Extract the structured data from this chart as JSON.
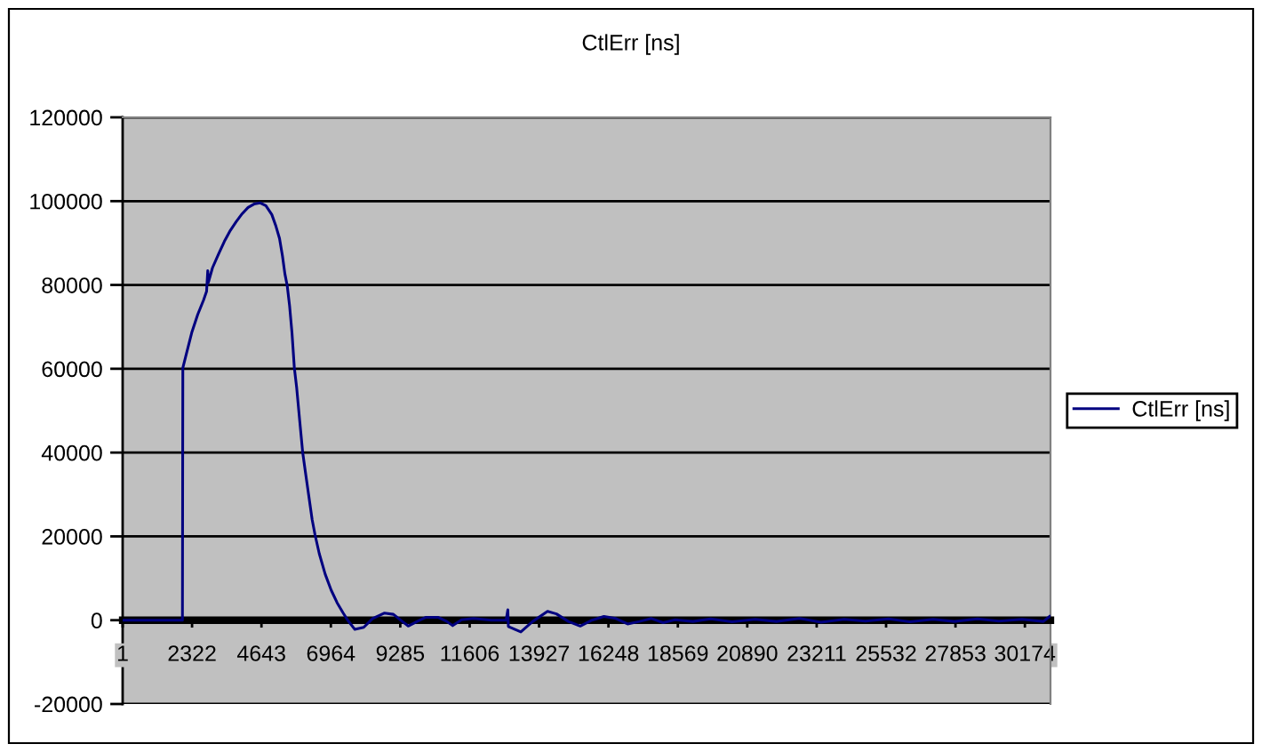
{
  "chart_data": {
    "type": "line",
    "title": "CtlErr [ns]",
    "x": [
      1,
      2000,
      2014,
      2113,
      2311,
      2510,
      2708,
      2808,
      2847,
      2867,
      3006,
      3204,
      3403,
      3601,
      3799,
      3998,
      4196,
      4394,
      4593,
      4791,
      4989,
      5128,
      5247,
      5346,
      5426,
      5505,
      5584,
      5664,
      5743,
      5822,
      5921,
      6021,
      6120,
      6219,
      6338,
      6437,
      6576,
      6774,
      6973,
      7171,
      7369,
      7528,
      7766,
      8063,
      8361,
      8759,
      9057,
      9354,
      9551,
      9849,
      10146,
      10545,
      10842,
      11038,
      11336,
      11734,
      12330,
      12824,
      12883,
      12900,
      13317,
      13715,
      14210,
      14507,
      14906,
      15304,
      15698,
      16096,
      16494,
      16887,
      17286,
      17684,
      18077,
      18476,
      19071,
      19666,
      20380,
      21154,
      21868,
      22641,
      23355,
      24129,
      24843,
      25616,
      26330,
      27104,
      27818,
      28591,
      29305,
      30079,
      30793,
      31001
    ],
    "series": [
      {
        "name": "CtlErr [ns]",
        "color": "#000080",
        "values": [
          0,
          0,
          60200,
          63000,
          68600,
          72900,
          76400,
          78500,
          83400,
          80600,
          84100,
          87300,
          90400,
          93000,
          95100,
          97000,
          98500,
          99300,
          99600,
          98900,
          96800,
          94000,
          91100,
          86900,
          82700,
          79800,
          75000,
          68600,
          60200,
          55400,
          47700,
          40100,
          35000,
          30000,
          24000,
          20300,
          15900,
          11000,
          7200,
          4200,
          1800,
          0,
          -2200,
          -1700,
          400,
          1700,
          1400,
          -300,
          -1400,
          -300,
          700,
          700,
          -300,
          -1300,
          100,
          400,
          0,
          0,
          2500,
          -1500,
          -2800,
          -300,
          2100,
          1500,
          -300,
          -1400,
          0,
          900,
          400,
          -900,
          -300,
          400,
          -600,
          100,
          -300,
          300,
          -400,
          200,
          -300,
          400,
          -500,
          200,
          -200,
          300,
          -400,
          200,
          -300,
          300,
          -200,
          200,
          -300,
          900
        ]
      }
    ],
    "xlim": [
      1,
      31030
    ],
    "xticks": [
      1,
      2322,
      4643,
      6964,
      9285,
      11606,
      13927,
      16248,
      18569,
      20890,
      23211,
      25532,
      27853,
      30174
    ],
    "ylim": [
      -20000,
      120000
    ],
    "yticks": [
      -20000,
      0,
      20000,
      40000,
      60000,
      80000,
      100000,
      120000
    ],
    "grid": "y",
    "legend": "right",
    "line_style": "solid"
  }
}
